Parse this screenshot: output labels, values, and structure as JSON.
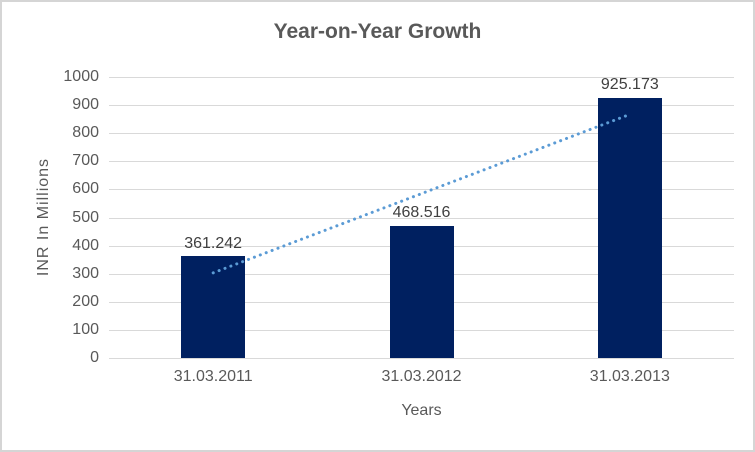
{
  "chart_data": {
    "type": "bar",
    "title": "Year-on-Year Growth",
    "categories": [
      "31.03.2011",
      "31.03.2012",
      "31.03.2013"
    ],
    "values": [
      361.242,
      468.516,
      925.173
    ],
    "data_labels": [
      "361.242",
      "468.516",
      "925.173"
    ],
    "xlabel": "Years",
    "ylabel": "INR In Millions",
    "ylim": [
      0,
      1000
    ],
    "ytick_step": 100,
    "y_tick_labels": [
      "1000",
      "900",
      "800",
      "700",
      "600",
      "500",
      "400",
      "300",
      "200",
      "100",
      "0"
    ],
    "grid": true,
    "legend": "none",
    "trendline": {
      "type": "linear",
      "style": "dotted",
      "fit_values_at_first_last_category": [
        303,
        867
      ]
    },
    "colors": {
      "bar": "#002060",
      "trendline": "#5b9bd5",
      "grid": "#d9d9d9",
      "axis_text": "#595959",
      "data_label": "#404040",
      "title_text": "#595959",
      "frame_border": "#d5d5d5"
    }
  }
}
